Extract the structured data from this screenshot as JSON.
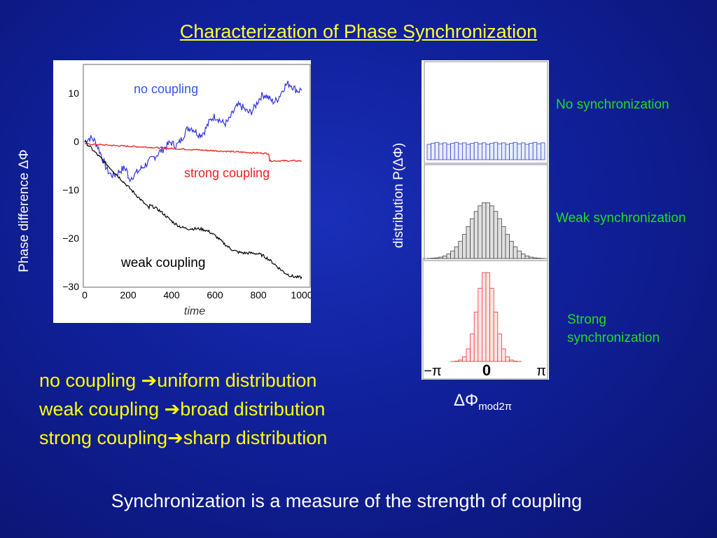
{
  "title": "Characterization of Phase Synchronization",
  "left_plot": {
    "y_axis_label": "Phase difference  ΔΦ",
    "x_label": "time",
    "x_ticks": [
      "0",
      "200",
      "400",
      "600",
      "800",
      "1000"
    ],
    "y_ticks": [
      "10",
      "0",
      "−10",
      "−20",
      "−30"
    ],
    "labels": {
      "no_coupling": "no coupling",
      "strong_coupling": "strong coupling",
      "weak_coupling": "weak coupling"
    },
    "colors": {
      "no_coupling": "#3333dd",
      "strong_coupling": "#ee2222",
      "weak_coupling": "#000000"
    }
  },
  "right_plot": {
    "y_axis_label": "distribution P(ΔΦ)",
    "x_label": "ΔΦ",
    "x_label_sub": "mod2π",
    "x_ticks": [
      "−π",
      "0",
      "π"
    ],
    "panel_labels": {
      "none": "No synchronization",
      "weak": "Weak synchronization",
      "strong": "Strong synchronization"
    }
  },
  "summary": {
    "line1": {
      "a": "no coupling ",
      "b": "uniform distribution"
    },
    "line2": {
      "a": "weak coupling ",
      "b": "broad distribution"
    },
    "line3": {
      "a": "strong coupling",
      "b": "sharp distribution"
    }
  },
  "conclusion": "Synchronization is a measure of the strength of coupling"
}
